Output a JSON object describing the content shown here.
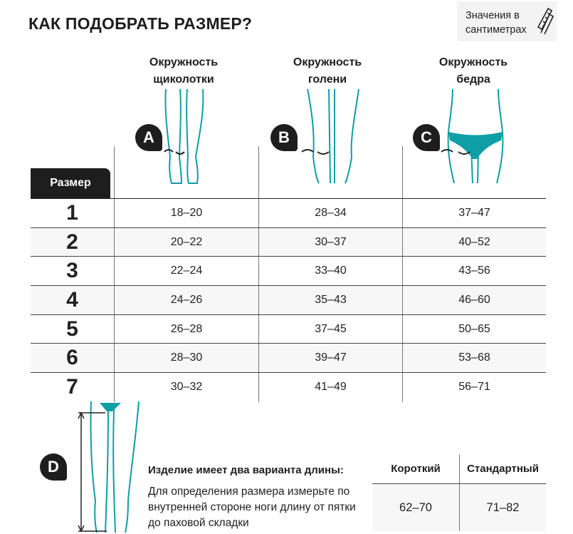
{
  "title": "КАК ПОДОБРАТЬ РАЗМЕР?",
  "units_badge": {
    "line1": "Значения в",
    "line2": "сантиметрах",
    "icon": "measuring-tape-icon"
  },
  "columns": [
    {
      "marker": "A",
      "line1": "Окружность",
      "line2": "щиколотки"
    },
    {
      "marker": "B",
      "line1": "Окружность",
      "line2": "голени"
    },
    {
      "marker": "C",
      "line1": "Окружность",
      "line2": "бедра"
    }
  ],
  "size_header": "Размер",
  "rows": [
    {
      "size": "1",
      "a": "18–20",
      "b": "28–34",
      "c": "37–47"
    },
    {
      "size": "2",
      "a": "20–22",
      "b": "30–37",
      "c": "40–52"
    },
    {
      "size": "3",
      "a": "22–24",
      "b": "33–40",
      "c": "43–56"
    },
    {
      "size": "4",
      "a": "24–26",
      "b": "35–43",
      "c": "46–60"
    },
    {
      "size": "5",
      "a": "26–28",
      "b": "37–45",
      "c": "50–65"
    },
    {
      "size": "6",
      "a": "28–30",
      "b": "39–47",
      "c": "53–68"
    },
    {
      "size": "7",
      "a": "30–32",
      "b": "41–49",
      "c": "56–71"
    }
  ],
  "length": {
    "marker": "D",
    "title": "Изделие имеет два варианта длины:",
    "desc": "Для определения размера измерьте по внутренней стороне ноги длину от пятки до паховой складки",
    "headers": [
      "Короткий",
      "Стандартный"
    ],
    "values": [
      "62–70",
      "71–82"
    ]
  },
  "colors": {
    "accent": "#0e9ea6",
    "dark": "#1e1e1e",
    "row_alt": "#f7f7f7"
  }
}
